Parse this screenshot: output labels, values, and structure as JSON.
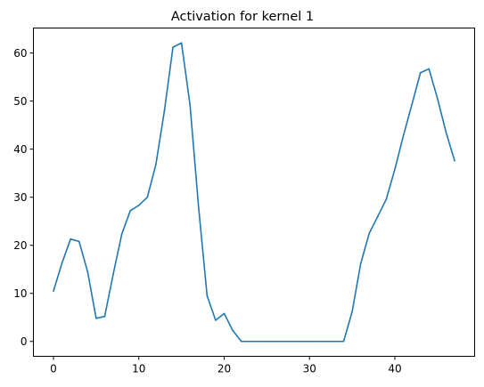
{
  "chart_data": {
    "type": "line",
    "title": "Activation for kernel 1",
    "xlabel": "",
    "ylabel": "",
    "xlim": [
      -2.35,
      49.35
    ],
    "ylim": [
      -3.1,
      65.2
    ],
    "xticks": [
      0,
      10,
      20,
      30,
      40
    ],
    "yticks": [
      0,
      10,
      20,
      30,
      40,
      50,
      60
    ],
    "grid": false,
    "legend": "none",
    "colors": {
      "series": "#1f77b4"
    },
    "series": [
      {
        "x": [
          0,
          1,
          2,
          3,
          4,
          5,
          6,
          7,
          8,
          9,
          10,
          11,
          12,
          13,
          14,
          15,
          16,
          17,
          18,
          19,
          20,
          21,
          22,
          23,
          24,
          25,
          26,
          27,
          28,
          29,
          30,
          31,
          32,
          33,
          34,
          35,
          36,
          37,
          38,
          39,
          40,
          41,
          42,
          43,
          44,
          45,
          46,
          47
        ],
        "values": [
          10.5,
          16.3,
          21.3,
          20.8,
          14.5,
          4.8,
          5.2,
          14.0,
          22.3,
          27.2,
          28.3,
          30.0,
          36.8,
          48.0,
          61.2,
          62.1,
          49.2,
          28.0,
          9.5,
          4.4,
          5.8,
          2.3,
          0,
          0,
          0,
          0,
          0,
          0,
          0,
          0,
          0,
          0,
          0,
          0,
          0,
          6.2,
          16.2,
          22.5,
          26.0,
          29.6,
          35.8,
          42.8,
          49.3,
          55.9,
          56.7,
          50.5,
          43.5,
          37.6
        ]
      }
    ]
  }
}
